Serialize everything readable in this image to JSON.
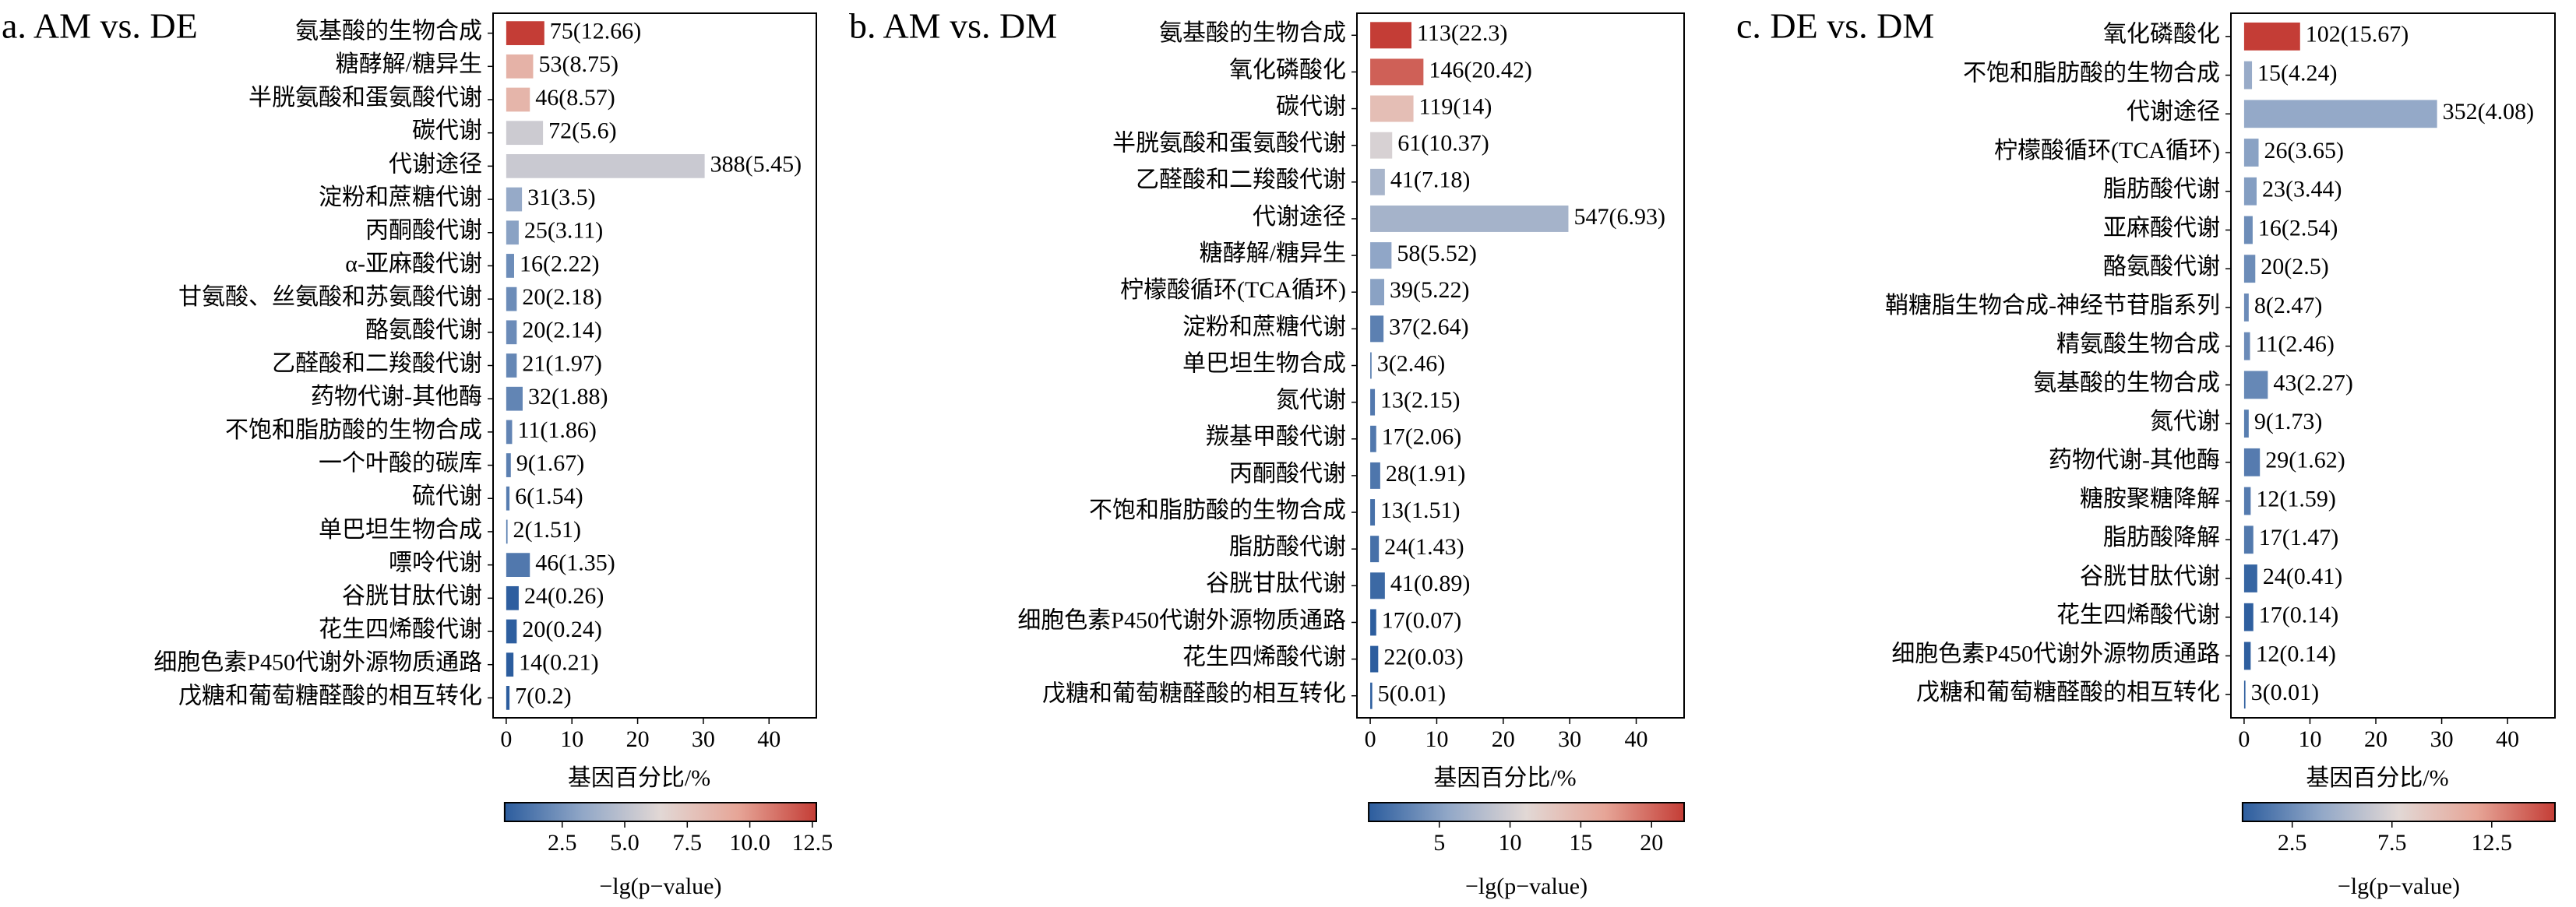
{
  "chart_data": [
    {
      "type": "bar",
      "orientation": "horizontal",
      "title": "a. AM vs. DE",
      "categories": [
        "氨基酸的生物合成",
        "糖酵解/糖异生",
        "半胱氨酸和蛋氨酸代谢",
        "碳代谢",
        "代谢途径",
        "淀粉和蔗糖代谢",
        "丙酮酸代谢",
        "α-亚麻酸代谢",
        "甘氨酸、丝氨酸和苏氨酸代谢",
        "酪氨酸代谢",
        "乙醛酸和二羧酸代谢",
        "药物代谢-其他酶",
        "不饱和脂肪酸的生物合成",
        "一个叶酸的碳库",
        "硫代谢",
        "单巴坦生物合成",
        "嘌呤代谢",
        "谷胱甘肽代谢",
        "花生四烯酸代谢",
        "细胞色素P450代谢外源物质通路",
        "戊糖和葡萄糖醛酸的相互转化"
      ],
      "values": [
        5.8,
        4.1,
        3.6,
        5.6,
        30.2,
        2.4,
        1.9,
        1.2,
        1.6,
        1.6,
        1.6,
        2.5,
        0.9,
        0.7,
        0.5,
        0.2,
        3.6,
        1.9,
        1.6,
        1.1,
        0.5
      ],
      "bar_labels": [
        "75(12.66)",
        "53(8.75)",
        "46(8.57)",
        "72(5.6)",
        "388(5.45)",
        "31(3.5)",
        "25(3.11)",
        "16(2.22)",
        "20(2.18)",
        "20(2.14)",
        "21(1.97)",
        "32(1.88)",
        "11(1.86)",
        "9(1.67)",
        "6(1.54)",
        "2(1.51)",
        "46(1.35)",
        "24(0.26)",
        "20(0.24)",
        "14(0.21)",
        "7(0.2)"
      ],
      "neglog_p": [
        12.66,
        8.75,
        8.57,
        5.6,
        5.45,
        3.5,
        3.11,
        2.22,
        2.18,
        2.14,
        1.97,
        1.88,
        1.86,
        1.67,
        1.54,
        1.51,
        1.35,
        0.26,
        0.24,
        0.21,
        0.2
      ],
      "xlabel": "基因百分比/%",
      "xlim": [
        -2,
        47.2
      ],
      "xticks": [
        0,
        10,
        20,
        30,
        40
      ],
      "colormap": [
        "#2c5d9e",
        "#91a7c7",
        "#e2d8d5",
        "#e6a597",
        "#c43d36"
      ],
      "clim": [
        0.2,
        12.66
      ],
      "cticks": [
        2.5,
        {
          "value": 5,
          "label": "5.0"
        },
        7.5,
        {
          "value": 10,
          "label": "10.0"
        },
        12.5
      ],
      "colorbar_label": "−lg(p−value)"
    },
    {
      "type": "bar",
      "orientation": "horizontal",
      "title": "b. AM vs. DM",
      "categories": [
        "氨基酸的生物合成",
        "氧化磷酸化",
        "碳代谢",
        "半胱氨酸和蛋氨酸代谢",
        "乙醛酸和二羧酸代谢",
        "代谢途径",
        "糖酵解/糖异生",
        "柠檬酸循环(TCA循环)",
        "淀粉和蔗糖代谢",
        "单巴坦生物合成",
        "氮代谢",
        "羰基甲酸代谢",
        "丙酮酸代谢",
        "不饱和脂肪酸的生物合成",
        "脂肪酸代谢",
        "谷胱甘肽代谢",
        "细胞色素P450代谢外源物质通路",
        "花生四烯酸代谢",
        "戊糖和葡萄糖醛酸的相互转化"
      ],
      "values": [
        6.2,
        8.0,
        6.5,
        3.3,
        2.2,
        29.8,
        3.2,
        2.1,
        2.0,
        0.2,
        0.7,
        0.9,
        1.5,
        0.7,
        1.3,
        2.2,
        0.9,
        1.2,
        0.3
      ],
      "bar_labels": [
        "113(22.3)",
        "146(20.42)",
        "119(14)",
        "61(10.37)",
        "41(7.18)",
        "547(6.93)",
        "58(5.52)",
        "39(5.22)",
        "37(2.64)",
        "3(2.46)",
        "13(2.15)",
        "17(2.06)",
        "28(1.91)",
        "13(1.51)",
        "24(1.43)",
        "41(0.89)",
        "17(0.07)",
        "22(0.03)",
        "5(0.01)"
      ],
      "neglog_p": [
        22.3,
        20.42,
        14,
        10.37,
        7.18,
        6.93,
        5.52,
        5.22,
        2.64,
        2.46,
        2.15,
        2.06,
        1.91,
        1.51,
        1.43,
        0.89,
        0.07,
        0.03,
        0.01
      ],
      "xlabel": "基因百分比/%",
      "xlim": [
        -2,
        47.2
      ],
      "xticks": [
        0,
        10,
        20,
        30,
        40
      ],
      "colormap": [
        "#2c5d9e",
        "#91a7c7",
        "#e2d8d5",
        "#e6a597",
        "#c43d36"
      ],
      "clim": [
        0.01,
        22.3
      ],
      "cticks": [
        5,
        10,
        15,
        20
      ],
      "colorbar_label": "−lg(p−value)"
    },
    {
      "type": "bar",
      "orientation": "horizontal",
      "title": "c. DE vs. DM",
      "categories": [
        "氧化磷酸化",
        "不饱和脂肪酸的生物合成",
        "代谢途径",
        "柠檬酸循环(TCA循环)",
        "脂肪酸代谢",
        "亚麻酸代谢",
        "酪氨酸代谢",
        "鞘糖脂生物合成-神经节苷脂系列",
        "精氨酸生物合成",
        "氨基酸的生物合成",
        "氮代谢",
        "药物代谢-其他酶",
        "糖胺聚糖降解",
        "脂肪酸降解",
        "谷胱甘肽代谢",
        "花生四烯酸代谢",
        "细胞色素P450代谢外源物质通路",
        "戊糖和葡萄糖醛酸的相互转化"
      ],
      "values": [
        8.5,
        1.2,
        29.3,
        2.2,
        1.9,
        1.3,
        1.7,
        0.7,
        0.9,
        3.6,
        0.7,
        2.4,
        1.0,
        1.4,
        2.0,
        1.4,
        1.0,
        0.2
      ],
      "bar_labels": [
        "102(15.67)",
        "15(4.24)",
        "352(4.08)",
        "26(3.65)",
        "23(3.44)",
        "16(2.54)",
        "20(2.5)",
        "8(2.47)",
        "11(2.46)",
        "43(2.27)",
        "9(1.73)",
        "29(1.62)",
        "12(1.59)",
        "17(1.47)",
        "24(0.41)",
        "17(0.14)",
        "12(0.14)",
        "3(0.01)"
      ],
      "neglog_p": [
        15.67,
        4.24,
        4.08,
        3.65,
        3.44,
        2.54,
        2.5,
        2.47,
        2.46,
        2.27,
        1.73,
        1.62,
        1.59,
        1.47,
        0.41,
        0.14,
        0.14,
        0.01
      ],
      "xlabel": "基因百分比/%",
      "xlim": [
        -2,
        47.2
      ],
      "xticks": [
        0,
        10,
        20,
        30,
        40
      ],
      "colormap": [
        "#2c5d9e",
        "#91a7c7",
        "#e2d8d5",
        "#e6a597",
        "#c43d36"
      ],
      "clim": [
        0.01,
        15.67
      ],
      "cticks": [
        2.5,
        7.5,
        12.5
      ],
      "colorbar_label": "−lg(p−value)"
    }
  ]
}
